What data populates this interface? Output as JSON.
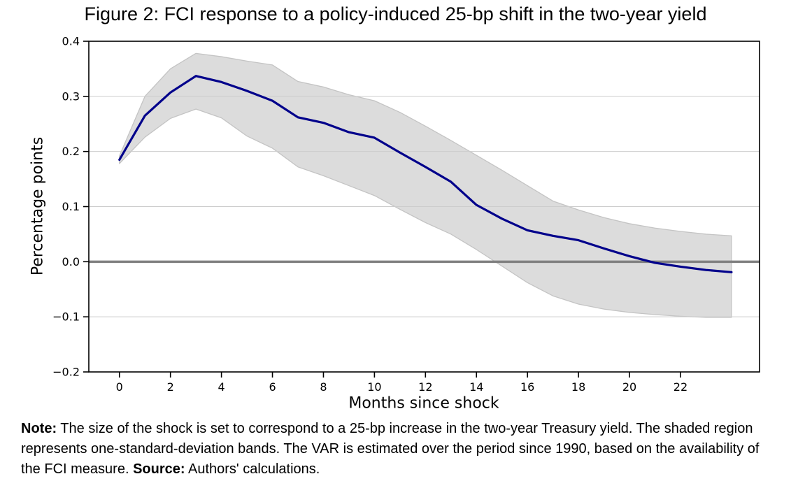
{
  "note": {
    "note_label": "Note:",
    "note_body": " The size of the shock is set to correspond to a 25-bp increase in the two-year Treasury yield. The shaded region represents one-standard-deviation bands. The VAR is estimated over the period since 1990, based on the availability of the FCI measure. ",
    "source_label": "Source:",
    "source_body": " Authors' calculations."
  },
  "chart_data": {
    "type": "line",
    "title": "Figure 2: FCI response to a policy-induced 25-bp shift in the two-year yield",
    "xlabel": "Months since shock",
    "ylabel": "Percentage points",
    "x": [
      0,
      1,
      2,
      3,
      4,
      5,
      6,
      7,
      8,
      9,
      10,
      11,
      12,
      13,
      14,
      15,
      16,
      17,
      18,
      19,
      20,
      21,
      22,
      23,
      24
    ],
    "series": [
      {
        "name": "FCI response",
        "color": "#00008b",
        "values": [
          0.185,
          0.265,
          0.307,
          0.337,
          0.326,
          0.31,
          0.292,
          0.262,
          0.252,
          0.235,
          0.225,
          0.198,
          0.172,
          0.145,
          0.103,
          0.078,
          0.057,
          0.047,
          0.039,
          0.024,
          0.01,
          -0.002,
          -0.009,
          -0.015,
          -0.019
        ]
      }
    ],
    "band": {
      "name": "one-standard-deviation band",
      "fill": "#dcdcdc",
      "edge": "#c4c4c4",
      "upper": [
        0.192,
        0.3,
        0.35,
        0.378,
        0.372,
        0.364,
        0.357,
        0.327,
        0.317,
        0.303,
        0.292,
        0.271,
        0.246,
        0.22,
        0.193,
        0.166,
        0.138,
        0.11,
        0.094,
        0.08,
        0.069,
        0.061,
        0.055,
        0.05,
        0.047
      ],
      "lower": [
        0.178,
        0.226,
        0.26,
        0.277,
        0.261,
        0.228,
        0.206,
        0.172,
        0.156,
        0.138,
        0.12,
        0.095,
        0.071,
        0.05,
        0.022,
        -0.008,
        -0.038,
        -0.062,
        -0.077,
        -0.086,
        -0.092,
        -0.096,
        -0.099,
        -0.101,
        -0.101
      ]
    },
    "xlim": [
      -1.2,
      25.1
    ],
    "ylim": [
      -0.2,
      0.4
    ],
    "xticks": [
      0,
      2,
      4,
      6,
      8,
      10,
      12,
      14,
      16,
      18,
      20,
      22
    ],
    "yticks": [
      -0.2,
      -0.1,
      0,
      0.1,
      0.2,
      0.3,
      0.4
    ],
    "ytick_labels": [
      "−0.2",
      "−0.1",
      "0.0",
      "0.1",
      "0.2",
      "0.3",
      "0.4"
    ],
    "grid": "horizontal",
    "grid_color": "#cccccc",
    "zero_line_color": "#808080",
    "frame_color": "#000000",
    "legend": "none"
  }
}
